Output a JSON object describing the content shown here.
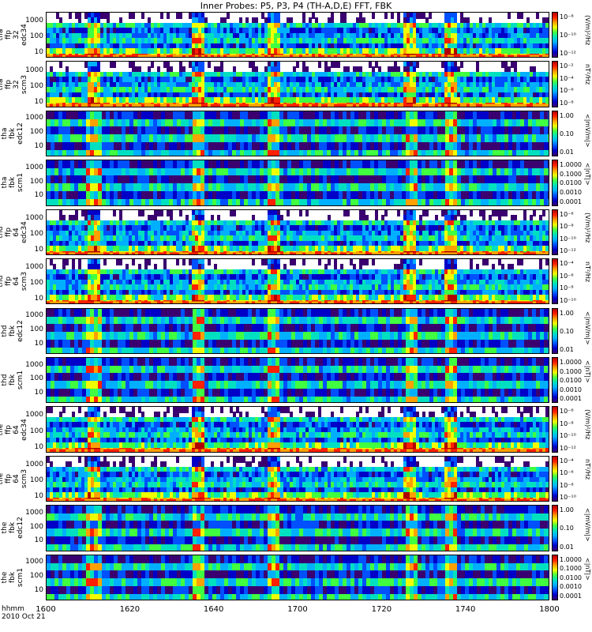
{
  "chart_data": {
    "type": "heatmap",
    "title": "Inner Probes: P5, P3, P4 (TH-A,D,E) FFT, FBK",
    "x_axis": {
      "label_line1": "hhmm",
      "label_line2": "2010 Oct 21",
      "ticks": [
        "1600",
        "1620",
        "1640",
        "1700",
        "1720",
        "1740",
        "1800"
      ]
    },
    "y_axis": {
      "scale": "log",
      "ticks": [
        "10",
        "100",
        "1000"
      ]
    },
    "panels": [
      {
        "label": [
          "tha",
          "ffp",
          "32",
          "edc34"
        ],
        "ylim": [
          5,
          4000
        ],
        "yticks": [
          "10",
          "100",
          "1000"
        ],
        "cbar_ticks": [
          "10⁻⁸",
          "10⁻¹⁰",
          "10⁻¹²"
        ],
        "cbar_unit": "(V/m)²/Hz"
      },
      {
        "label": [
          "tha",
          "ffp",
          "32",
          "scm3"
        ],
        "ylim": [
          5,
          4000
        ],
        "yticks": [
          "10",
          "100",
          "1000"
        ],
        "cbar_ticks": [
          "10⁻²",
          "10⁻⁴",
          "10⁻⁶",
          "10⁻⁸"
        ],
        "cbar_unit": "nT²/Hz"
      },
      {
        "label": [
          "tha",
          "fbk",
          "edc12"
        ],
        "ylim": [
          2,
          4000
        ],
        "yticks": [
          "10",
          "100",
          "1000"
        ],
        "cbar_ticks": [
          "1.00",
          "0.10",
          "0.01"
        ],
        "cbar_unit": "<|mV/m|>"
      },
      {
        "label": [
          "tha",
          "fbk",
          "scm1"
        ],
        "ylim": [
          2,
          4000
        ],
        "yticks": [
          "10",
          "100",
          "1000"
        ],
        "cbar_ticks": [
          "1.0000",
          "0.1000",
          "0.0100",
          "0.0010",
          "0.0001"
        ],
        "cbar_unit": "<|nT|>"
      },
      {
        "label": [
          "thd",
          "ffp",
          "64",
          "edc34"
        ],
        "ylim": [
          5,
          4000
        ],
        "yticks": [
          "10",
          "100",
          "1000"
        ],
        "cbar_ticks": [
          "10⁻⁶",
          "10⁻⁸",
          "10⁻¹⁰",
          "10⁻¹²"
        ],
        "cbar_unit": "(V/m)²/Hz"
      },
      {
        "label": [
          "thd",
          "ffp",
          "64",
          "scm3"
        ],
        "ylim": [
          5,
          4000
        ],
        "yticks": [
          "10",
          "100",
          "1000"
        ],
        "cbar_ticks": [
          "10⁻⁴",
          "10⁻⁶",
          "10⁻⁸",
          "10⁻¹⁰"
        ],
        "cbar_unit": "nT²/Hz"
      },
      {
        "label": [
          "thd",
          "fbk",
          "edc12"
        ],
        "ylim": [
          2,
          4000
        ],
        "yticks": [
          "10",
          "100",
          "1000"
        ],
        "cbar_ticks": [
          "1.00",
          "0.10",
          "0.01"
        ],
        "cbar_unit": "<|mV/m|>"
      },
      {
        "label": [
          "thd",
          "fbk",
          "scm1"
        ],
        "ylim": [
          2,
          4000
        ],
        "yticks": [
          "10",
          "100",
          "1000"
        ],
        "cbar_ticks": [
          "1.0000",
          "0.1000",
          "0.0100",
          "0.0010",
          "0.0001"
        ],
        "cbar_unit": "<|nT|>"
      },
      {
        "label": [
          "the",
          "ffp",
          "64",
          "edc34"
        ],
        "ylim": [
          5,
          4000
        ],
        "yticks": [
          "10",
          "100",
          "1000"
        ],
        "cbar_ticks": [
          "10⁻⁶",
          "10⁻⁸",
          "10⁻¹⁰",
          "10⁻¹²"
        ],
        "cbar_unit": "(V/m)²/Hz"
      },
      {
        "label": [
          "the",
          "ffp",
          "64",
          "scm3"
        ],
        "ylim": [
          5,
          4000
        ],
        "yticks": [
          "10",
          "100",
          "1000"
        ],
        "cbar_ticks": [
          "10⁻⁴",
          "10⁻⁶",
          "10⁻⁸",
          "10⁻¹⁰"
        ],
        "cbar_unit": "nT²/Hz"
      },
      {
        "label": [
          "the",
          "fbk",
          "edc12"
        ],
        "ylim": [
          2,
          4000
        ],
        "yticks": [
          "10",
          "100",
          "1000"
        ],
        "cbar_ticks": [
          "1.00",
          "0.10",
          "0.01"
        ],
        "cbar_unit": "<|mV/m|>"
      },
      {
        "label": [
          "the",
          "fbk",
          "scm1"
        ],
        "ylim": [
          2,
          4000
        ],
        "yticks": [
          "10",
          "100",
          "1000"
        ],
        "cbar_ticks": [
          "1.0000",
          "0.1000",
          "0.0100",
          "0.0010",
          "0.0001"
        ],
        "cbar_unit": "<|nT|>"
      }
    ],
    "colorscale": [
      "#3a0070",
      "#0000c8",
      "#0050ff",
      "#00b0ff",
      "#00e0c0",
      "#40ff40",
      "#f0ff00",
      "#ffa000",
      "#ff2000",
      "#b00000"
    ]
  }
}
